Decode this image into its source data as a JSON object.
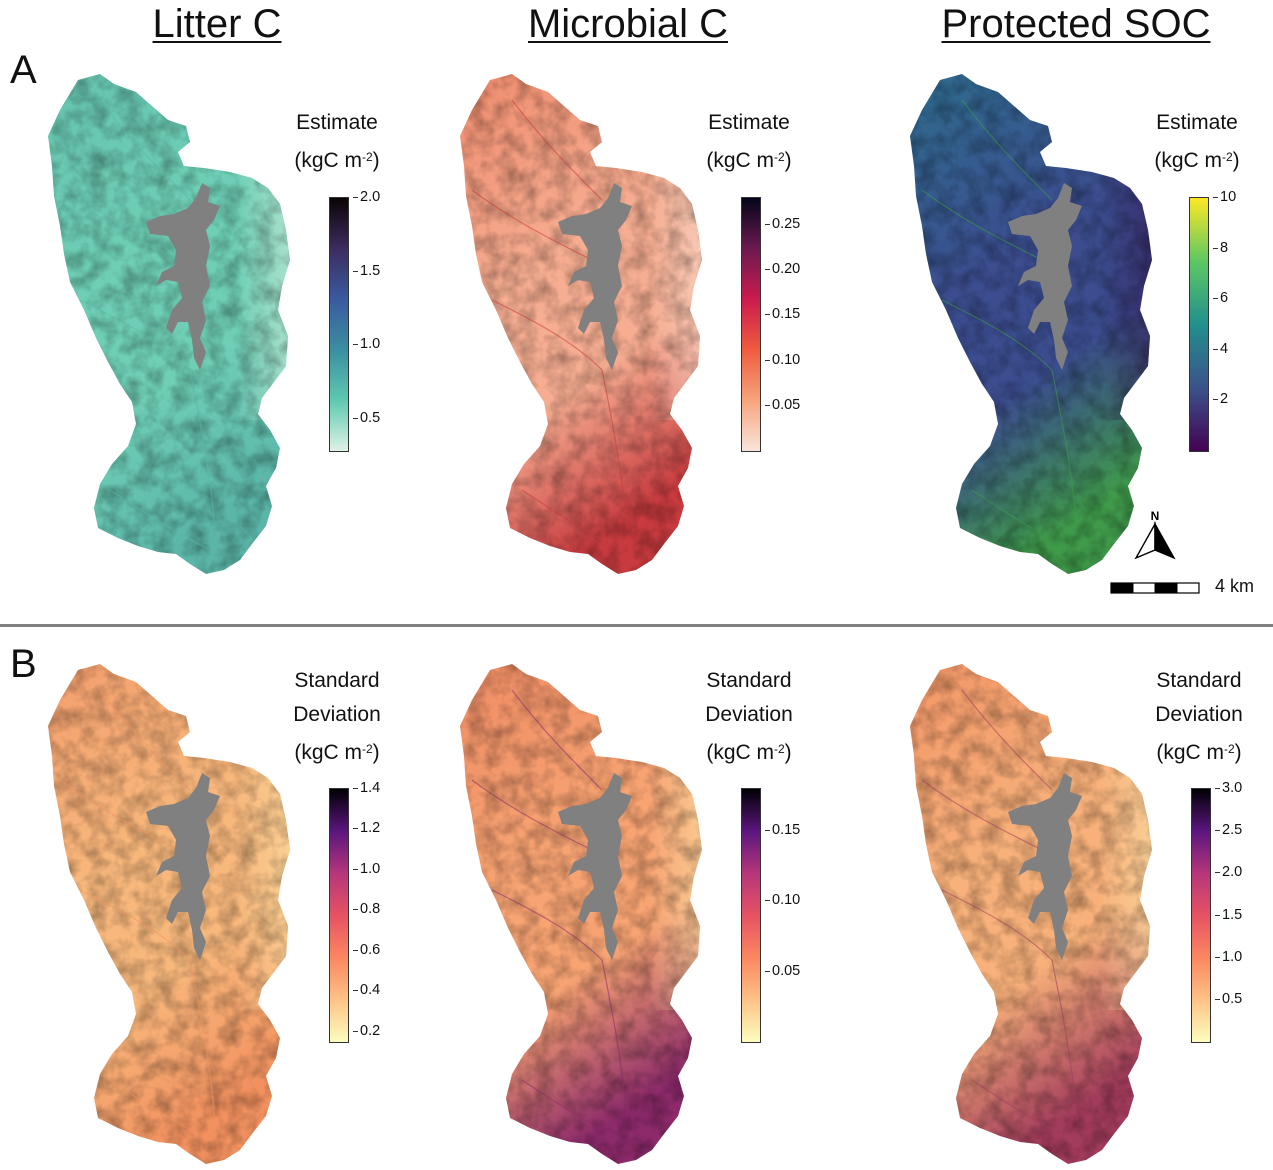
{
  "panels": {
    "a": "A",
    "b": "B"
  },
  "columns": [
    {
      "title": "Litter C"
    },
    {
      "title": "Microbial C"
    },
    {
      "title": "Protected SOC"
    }
  ],
  "legend_text": {
    "estimate": "Estimate",
    "standard": "Standard",
    "deviation": "Deviation",
    "unit_base": "(kgC m",
    "unit_sup": "-2",
    "unit_close": ")"
  },
  "legends": {
    "est_litter": {
      "palette": "mako",
      "colors": [
        "#dff2e6",
        "#5ec9b0",
        "#3a8fa0",
        "#3a5aa0",
        "#3d2c5e",
        "#0b0405"
      ],
      "ticks": [
        "2.0",
        "1.5",
        "1.0",
        "0.5"
      ],
      "tick_values": [
        2.0,
        1.5,
        1.0,
        0.5
      ],
      "range": [
        0.28,
        2.0
      ]
    },
    "est_microbial": {
      "palette": "rocket",
      "colors": [
        "#f9e5dc",
        "#f6a47c",
        "#f05b3f",
        "#cb1b4f",
        "#6b1a4f",
        "#03051a"
      ],
      "ticks": [
        "0.25",
        "0.20",
        "0.15",
        "0.10",
        "0.05"
      ],
      "tick_values": [
        0.25,
        0.2,
        0.15,
        0.1,
        0.05
      ],
      "range": [
        0.0,
        0.28
      ]
    },
    "est_soc": {
      "palette": "viridis",
      "colors": [
        "#440154",
        "#3b528b",
        "#21908d",
        "#5dc863",
        "#fde725"
      ],
      "ticks": [
        "10",
        "8",
        "6",
        "4",
        "2"
      ],
      "tick_values": [
        10,
        8,
        6,
        4,
        2
      ],
      "range": [
        0.0,
        10.0
      ]
    },
    "sd_litter": {
      "palette": "magma",
      "colors": [
        "#fcfdbf",
        "#fec287",
        "#fb8761",
        "#e75263",
        "#b5367a",
        "#5b167e",
        "#000004"
      ],
      "ticks": [
        "1.4",
        "1.2",
        "1.0",
        "0.8",
        "0.6",
        "0.4",
        "0.2"
      ],
      "tick_values": [
        1.4,
        1.2,
        1.0,
        0.8,
        0.6,
        0.4,
        0.2
      ],
      "range": [
        0.15,
        1.4
      ]
    },
    "sd_microbial": {
      "palette": "magma",
      "colors": [
        "#fcfdbf",
        "#fec287",
        "#fb8761",
        "#e75263",
        "#b5367a",
        "#5b167e",
        "#000004"
      ],
      "ticks": [
        "0.15",
        "0.10",
        "0.05"
      ],
      "tick_values": [
        0.15,
        0.1,
        0.05
      ],
      "range": [
        0.0,
        0.18
      ]
    },
    "sd_soc": {
      "palette": "magma",
      "colors": [
        "#fcfdbf",
        "#fec287",
        "#fb8761",
        "#e75263",
        "#b5367a",
        "#5b167e",
        "#000004"
      ],
      "ticks": [
        "3.0",
        "2.5",
        "2.0",
        "1.5",
        "1.0",
        "0.5"
      ],
      "tick_values": [
        3.0,
        2.5,
        2.0,
        1.5,
        1.0,
        0.5
      ],
      "range": [
        0.0,
        3.0
      ]
    }
  },
  "maps": {
    "est_litter": {
      "fill": "#6fcfb6",
      "south": "#5bb6a8",
      "north": "#65c3ae",
      "east": "#bfe7d4"
    },
    "est_microbial": {
      "fill": "#f6ad91",
      "south": "#c73a3e",
      "north": "#ef8a6c",
      "east": "#f9d3c2"
    },
    "est_soc": {
      "fill": "#3b4d8f",
      "south": "#3f9a4a",
      "north": "#2e6e8e",
      "east": "#35235f"
    },
    "sd_litter": {
      "fill": "#f8b87c",
      "south": "#f2915f",
      "north": "#f39d6c",
      "east": "#fbd79b"
    },
    "sd_microbial": {
      "fill": "#f7a372",
      "south": "#8c2a6a",
      "north": "#ef8b64",
      "east": "#fbd79c"
    },
    "sd_soc": {
      "fill": "#f8b17a",
      "south": "#a33c5c",
      "north": "#f19466",
      "east": "#fbd9a0"
    }
  },
  "reservoir_color": "#808080",
  "north_arrow_label": "N",
  "scale_bar_label": "4 km"
}
